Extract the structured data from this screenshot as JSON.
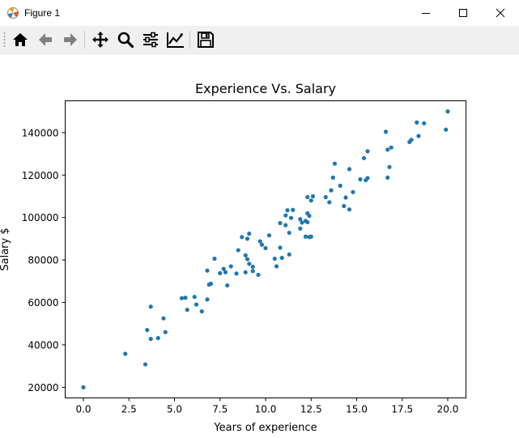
{
  "window": {
    "title": "Figure 1",
    "controls": [
      "minimize-icon",
      "maximize-icon",
      "close-icon"
    ]
  },
  "toolbar": {
    "tools": [
      "home-icon",
      "back-arrow-icon",
      "forward-arrow-icon",
      "pan-icon",
      "zoom-icon",
      "configure-subplots-icon",
      "edit-axis-icon",
      "save-icon"
    ]
  },
  "chart_data": {
    "type": "scatter",
    "title": "Experience Vs. Salary",
    "xlabel": "Years of experience",
    "ylabel": "Salary $",
    "xlim": [
      -1.0,
      21.0
    ],
    "ylim": [
      15000,
      155000
    ],
    "xticks": [
      0.0,
      2.5,
      5.0,
      7.5,
      10.0,
      12.5,
      15.0,
      17.5,
      20.0
    ],
    "xtick_labels": [
      "0.0",
      "2.5",
      "5.0",
      "7.5",
      "10.0",
      "12.5",
      "15.0",
      "17.5",
      "20.0"
    ],
    "yticks": [
      20000,
      40000,
      60000,
      80000,
      100000,
      120000,
      140000
    ],
    "ytick_labels": [
      "20000",
      "40000",
      "60000",
      "80000",
      "100000",
      "120000",
      "140000"
    ],
    "grid": false,
    "marker_color": "#1f77b4",
    "points": [
      [
        0.0,
        20000
      ],
      [
        2.3,
        35800
      ],
      [
        3.4,
        30800
      ],
      [
        3.5,
        47000
      ],
      [
        3.7,
        42800
      ],
      [
        3.7,
        58000
      ],
      [
        4.1,
        43200
      ],
      [
        4.4,
        52500
      ],
      [
        4.5,
        46000
      ],
      [
        5.4,
        62000
      ],
      [
        5.6,
        62200
      ],
      [
        5.7,
        56500
      ],
      [
        6.1,
        62600
      ],
      [
        6.2,
        59000
      ],
      [
        6.5,
        55800
      ],
      [
        6.8,
        75000
      ],
      [
        6.8,
        61400
      ],
      [
        6.9,
        68400
      ],
      [
        7.0,
        68800
      ],
      [
        7.2,
        80600
      ],
      [
        7.5,
        73800
      ],
      [
        7.7,
        75800
      ],
      [
        7.8,
        74200
      ],
      [
        7.9,
        68000
      ],
      [
        8.1,
        77000
      ],
      [
        8.4,
        73600
      ],
      [
        8.5,
        84600
      ],
      [
        8.7,
        90800
      ],
      [
        8.9,
        82200
      ],
      [
        8.9,
        74200
      ],
      [
        9.0,
        80400
      ],
      [
        9.0,
        90000
      ],
      [
        9.1,
        78200
      ],
      [
        9.1,
        92400
      ],
      [
        9.3,
        76800
      ],
      [
        9.3,
        74800
      ],
      [
        9.6,
        73000
      ],
      [
        9.7,
        88800
      ],
      [
        9.8,
        87200
      ],
      [
        10.0,
        85600
      ],
      [
        10.2,
        91600
      ],
      [
        10.5,
        80600
      ],
      [
        10.6,
        77000
      ],
      [
        10.8,
        85800
      ],
      [
        10.8,
        97400
      ],
      [
        10.9,
        81000
      ],
      [
        11.1,
        101000
      ],
      [
        11.1,
        96400
      ],
      [
        11.2,
        103400
      ],
      [
        11.3,
        92800
      ],
      [
        11.3,
        82600
      ],
      [
        11.4,
        99800
      ],
      [
        11.5,
        103600
      ],
      [
        11.9,
        94800
      ],
      [
        11.9,
        99200
      ],
      [
        12.0,
        97600
      ],
      [
        12.2,
        98400
      ],
      [
        12.2,
        91000
      ],
      [
        12.3,
        109600
      ],
      [
        12.3,
        102000
      ],
      [
        12.3,
        97800
      ],
      [
        12.4,
        90800
      ],
      [
        12.4,
        100800
      ],
      [
        12.5,
        108000
      ],
      [
        12.5,
        91000
      ],
      [
        12.6,
        110000
      ],
      [
        13.3,
        109600
      ],
      [
        13.5,
        107200
      ],
      [
        13.6,
        112800
      ],
      [
        13.7,
        118800
      ],
      [
        13.8,
        125400
      ],
      [
        14.1,
        115000
      ],
      [
        14.3,
        105400
      ],
      [
        14.4,
        109400
      ],
      [
        14.6,
        103800
      ],
      [
        14.6,
        122800
      ],
      [
        14.8,
        112000
      ],
      [
        15.2,
        118000
      ],
      [
        15.4,
        128000
      ],
      [
        15.5,
        117600
      ],
      [
        15.6,
        131200
      ],
      [
        15.6,
        118600
      ],
      [
        16.6,
        140400
      ],
      [
        16.7,
        132000
      ],
      [
        16.7,
        118800
      ],
      [
        16.8,
        123800
      ],
      [
        16.9,
        133000
      ],
      [
        17.9,
        135600
      ],
      [
        18.0,
        136600
      ],
      [
        18.3,
        144800
      ],
      [
        18.4,
        138400
      ],
      [
        18.7,
        144400
      ],
      [
        19.9,
        141400
      ],
      [
        20.0,
        150000
      ]
    ]
  }
}
